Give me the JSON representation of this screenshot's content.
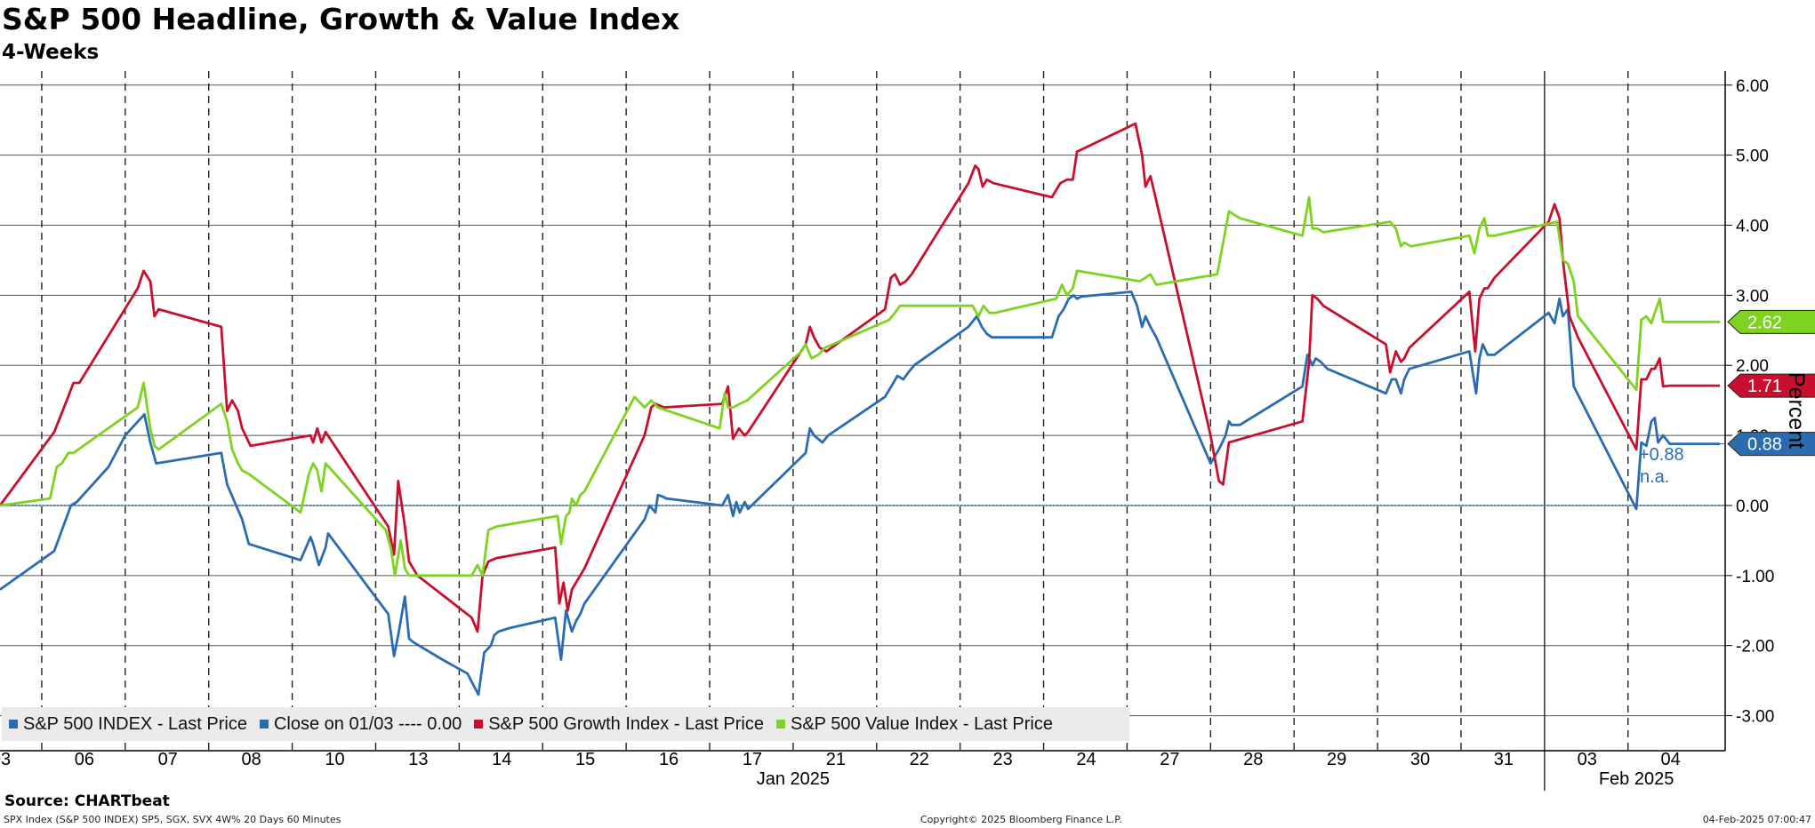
{
  "header": {
    "title": "S&P 500 Headline, Growth & Value Index",
    "subtitle": "4-Weeks"
  },
  "footer": {
    "source": "Source: CHARTbeat",
    "description": "SPX Index (S&P 500 INDEX) SP5, SGX, SVX 4W% 20 Days 60 Minutes",
    "copyright": "Copyright© 2025 Bloomberg Finance L.P.",
    "timestamp": "04-Feb-2025 07:00:47"
  },
  "legend": [
    {
      "label": "S&P 500 INDEX - Last Price",
      "color": "#2b6cb0"
    },
    {
      "label": "Close on 01/03 ---- 0.00",
      "color": "#2b6cb0"
    },
    {
      "label": "S&P 500 Growth Index - Last Price",
      "color": "#c8102e"
    },
    {
      "label": "S&P 500 Value Index - Last Price",
      "color": "#7ed321"
    }
  ],
  "chart_data": {
    "type": "line",
    "title": "S&P 500 Headline, Growth & Value Index",
    "subtitle": "4-Weeks",
    "ylabel": "Percent",
    "ylim": [
      -3.5,
      6.2
    ],
    "yticks": [
      6,
      5,
      4,
      3,
      2,
      1,
      0,
      -1,
      -2,
      -3
    ],
    "ytick_labels": [
      "6.00",
      "5.00",
      "4.00",
      "3.00",
      "2.00",
      "1.00",
      "0.00",
      "-1.00",
      "-2.00",
      "-3.00"
    ],
    "x_range": [
      0,
      20.6
    ],
    "categories": [
      "03",
      "06",
      "07",
      "08",
      "10",
      "13",
      "14",
      "15",
      "16",
      "17",
      "21",
      "22",
      "23",
      "24",
      "27",
      "28",
      "29",
      "30",
      "31",
      "03",
      "04"
    ],
    "month_labels": [
      {
        "label": "Jan 2025",
        "at": 9.5
      },
      {
        "label": "Feb 2025",
        "at": 19.6
      }
    ],
    "baseline": {
      "label": "Close on 01/03",
      "value": 0.0
    },
    "annotations": {
      "headline_value": "+0.88",
      "na_text": "n.a."
    },
    "series": [
      {
        "name": "S&P 500 INDEX - Last Price",
        "color": "#2b6cb0",
        "last": 0.88,
        "last_label": "0.88",
        "x": [
          0,
          0.65,
          0.85,
          0.92,
          1.3,
          1.5,
          1.73,
          1.8,
          1.87,
          2.65,
          2.72,
          2.9,
          2.98,
          3.6,
          3.72,
          3.75,
          3.82,
          3.9,
          3.93,
          4.65,
          4.72,
          4.77,
          4.85,
          4.9,
          4.95,
          5.3,
          5.6,
          5.73,
          5.8,
          5.88,
          5.92,
          5.97,
          6.1,
          6.65,
          6.72,
          6.78,
          6.85,
          6.9,
          6.95,
          7.0,
          7.72,
          7.78,
          7.85,
          7.88,
          7.95,
          7.98,
          8.65,
          8.72,
          8.78,
          8.82,
          8.86,
          8.92,
          8.96,
          9.65,
          9.7,
          9.75,
          9.85,
          9.92,
          10.6,
          10.7,
          10.75,
          10.82,
          10.88,
          10.95,
          11.6,
          11.7,
          11.76,
          11.82,
          11.88,
          12.6,
          12.68,
          12.74,
          12.8,
          12.86,
          12.9,
          12.95,
          13.55,
          13.62,
          13.68,
          13.72,
          13.78,
          13.85,
          14.5,
          14.6,
          14.68,
          14.72,
          14.75,
          14.85,
          15.6,
          15.66,
          15.72,
          15.76,
          15.82,
          15.9,
          16.6,
          16.67,
          16.72,
          16.78,
          16.82,
          16.88,
          17.6,
          17.68,
          17.72,
          17.76,
          17.82,
          17.9,
          18.55,
          18.62,
          18.68,
          18.72,
          18.78,
          18.85,
          19.6,
          19.66,
          19.72,
          19.78,
          19.82,
          19.86,
          19.92,
          20.0,
          20.6
        ],
        "y": [
          -1.2,
          -0.65,
          0.0,
          0.05,
          0.55,
          1.0,
          1.3,
          0.9,
          0.6,
          0.75,
          0.3,
          -0.2,
          -0.55,
          -0.78,
          -0.45,
          -0.55,
          -0.85,
          -0.6,
          -0.4,
          -1.55,
          -2.15,
          -1.85,
          -1.3,
          -1.9,
          -1.95,
          -2.2,
          -2.4,
          -2.7,
          -2.1,
          -2.0,
          -1.85,
          -1.8,
          -1.75,
          -1.6,
          -2.2,
          -1.5,
          -1.8,
          -1.65,
          -1.55,
          -1.4,
          -0.2,
          0.0,
          -0.1,
          0.15,
          0.12,
          0.1,
          0.0,
          0.15,
          -0.15,
          0.05,
          -0.1,
          0.05,
          -0.05,
          0.75,
          1.1,
          1.0,
          0.9,
          1.0,
          1.55,
          1.75,
          1.85,
          1.8,
          1.9,
          2.0,
          2.55,
          2.7,
          2.55,
          2.45,
          2.4,
          2.4,
          2.7,
          2.8,
          2.95,
          3.0,
          2.95,
          2.98,
          3.05,
          2.85,
          2.55,
          2.7,
          2.55,
          2.4,
          0.6,
          0.8,
          1.0,
          1.2,
          1.15,
          1.15,
          1.7,
          2.15,
          2.0,
          2.1,
          2.05,
          1.95,
          1.6,
          1.8,
          1.8,
          1.6,
          1.8,
          1.95,
          2.2,
          1.6,
          2.1,
          2.3,
          2.15,
          2.15,
          2.75,
          2.6,
          2.95,
          2.7,
          2.8,
          1.7,
          -0.05,
          0.9,
          0.85,
          1.2,
          1.25,
          0.9,
          1.0,
          0.88,
          0.88
        ]
      },
      {
        "name": "S&P 500 Growth Index - Last Price",
        "color": "#c8102e",
        "last": 1.71,
        "last_label": "1.71",
        "x": [
          0,
          0.65,
          0.8,
          0.88,
          0.95,
          1.65,
          1.72,
          1.8,
          1.85,
          1.9,
          2.65,
          2.72,
          2.78,
          2.85,
          2.9,
          3.0,
          3.72,
          3.75,
          3.8,
          3.85,
          3.9,
          4.65,
          4.72,
          4.77,
          4.85,
          4.9,
          5.0,
          5.65,
          5.72,
          5.78,
          5.85,
          5.95,
          6.65,
          6.7,
          6.75,
          6.8,
          6.85,
          6.9,
          6.95,
          7.0,
          7.72,
          7.8,
          7.85,
          7.95,
          8.65,
          8.72,
          8.78,
          8.85,
          8.92,
          8.96,
          9.65,
          9.7,
          9.75,
          9.82,
          9.9,
          10.6,
          10.67,
          10.72,
          10.78,
          10.85,
          10.92,
          11.6,
          11.68,
          11.72,
          11.77,
          11.82,
          11.9,
          12.6,
          12.7,
          12.78,
          12.85,
          12.9,
          13.6,
          13.68,
          13.72,
          13.78,
          13.82,
          14.5,
          14.6,
          14.65,
          14.72,
          15.6,
          15.68,
          15.72,
          15.78,
          15.85,
          16.6,
          16.65,
          16.72,
          16.78,
          16.82,
          16.88,
          17.6,
          17.67,
          17.72,
          17.78,
          17.82,
          17.9,
          18.55,
          18.62,
          18.68,
          18.72,
          18.8,
          18.9,
          19.6,
          19.66,
          19.72,
          19.78,
          19.82,
          19.88,
          19.92,
          20.0,
          20.6
        ],
        "y": [
          0.0,
          1.05,
          1.5,
          1.75,
          1.75,
          3.1,
          3.35,
          3.2,
          2.7,
          2.8,
          2.55,
          1.35,
          1.5,
          1.35,
          1.1,
          0.85,
          1.0,
          0.9,
          1.1,
          0.9,
          1.05,
          -0.3,
          -0.7,
          0.35,
          -0.3,
          -0.8,
          -1.0,
          -1.6,
          -1.8,
          -1.0,
          -0.8,
          -0.75,
          -0.6,
          -1.4,
          -1.1,
          -1.5,
          -1.2,
          -1.1,
          -1.0,
          -0.9,
          1.0,
          1.4,
          1.45,
          1.4,
          1.45,
          1.7,
          0.95,
          1.1,
          1.0,
          1.05,
          2.3,
          2.55,
          2.4,
          2.25,
          2.2,
          2.8,
          3.25,
          3.3,
          3.15,
          3.2,
          3.3,
          4.6,
          4.85,
          4.8,
          4.55,
          4.65,
          4.6,
          4.4,
          4.6,
          4.65,
          4.65,
          5.05,
          5.45,
          5.0,
          4.55,
          4.7,
          4.5,
          1.0,
          0.35,
          0.3,
          0.9,
          1.2,
          2.05,
          3.0,
          2.95,
          2.85,
          2.3,
          1.9,
          2.2,
          2.05,
          2.1,
          2.25,
          3.05,
          2.2,
          2.95,
          3.1,
          3.1,
          3.25,
          4.05,
          4.3,
          4.1,
          3.5,
          2.7,
          2.4,
          0.8,
          1.8,
          1.8,
          1.95,
          1.95,
          2.1,
          1.7,
          1.71,
          1.71
        ]
      },
      {
        "name": "S&P 500 Value Index - Last Price",
        "color": "#7ed321",
        "last": 2.62,
        "last_label": "2.62",
        "x": [
          0,
          0.6,
          0.68,
          0.74,
          0.82,
          0.88,
          1.65,
          1.72,
          1.8,
          1.85,
          1.9,
          2.65,
          2.72,
          2.78,
          2.85,
          2.9,
          2.98,
          3.6,
          3.7,
          3.75,
          3.8,
          3.85,
          3.9,
          4.62,
          4.68,
          4.73,
          4.8,
          4.85,
          4.9,
          5.65,
          5.72,
          5.78,
          5.85,
          5.95,
          6.68,
          6.72,
          6.78,
          6.82,
          6.85,
          6.9,
          6.95,
          7.0,
          7.6,
          7.72,
          7.8,
          7.88,
          8.62,
          8.68,
          8.72,
          8.78,
          8.86,
          8.95,
          9.6,
          9.65,
          9.72,
          9.8,
          9.88,
          10.65,
          10.72,
          10.78,
          10.85,
          10.92,
          11.65,
          11.72,
          11.78,
          11.85,
          11.92,
          12.65,
          12.72,
          12.78,
          12.85,
          12.9,
          13.65,
          13.72,
          13.78,
          13.85,
          14.58,
          14.72,
          14.78,
          14.85,
          15.6,
          15.68,
          15.72,
          15.78,
          15.85,
          16.65,
          16.72,
          16.78,
          16.82,
          16.9,
          17.6,
          17.66,
          17.72,
          17.78,
          17.82,
          17.9,
          18.65,
          18.72,
          18.78,
          18.85,
          18.9,
          19.6,
          19.66,
          19.72,
          19.78,
          19.82,
          19.88,
          19.92,
          20.0,
          20.6
        ],
        "y": [
          0.0,
          0.1,
          0.55,
          0.6,
          0.75,
          0.75,
          1.4,
          1.75,
          1.1,
          0.85,
          0.8,
          1.45,
          1.2,
          0.8,
          0.6,
          0.5,
          0.45,
          -0.1,
          0.45,
          0.6,
          0.5,
          0.2,
          0.6,
          -0.35,
          -0.6,
          -1.0,
          -0.5,
          -0.9,
          -1.0,
          -1.0,
          -0.85,
          -1.0,
          -0.35,
          -0.3,
          -0.15,
          -0.55,
          -0.15,
          -0.1,
          0.1,
          0.0,
          0.15,
          0.2,
          1.55,
          1.4,
          1.5,
          1.4,
          1.1,
          1.6,
          1.4,
          1.4,
          1.45,
          1.5,
          2.2,
          2.3,
          2.1,
          2.15,
          2.25,
          2.65,
          2.75,
          2.85,
          2.85,
          2.85,
          2.85,
          2.7,
          2.85,
          2.75,
          2.75,
          2.95,
          3.15,
          3.0,
          3.1,
          3.35,
          3.2,
          3.25,
          3.3,
          3.15,
          3.3,
          4.2,
          4.15,
          4.1,
          3.85,
          4.4,
          3.95,
          3.95,
          3.9,
          4.05,
          3.95,
          3.7,
          3.75,
          3.7,
          3.85,
          3.6,
          3.95,
          4.1,
          3.85,
          3.85,
          4.05,
          3.5,
          3.45,
          3.2,
          2.7,
          1.65,
          2.65,
          2.7,
          2.6,
          2.75,
          2.95,
          2.62,
          2.62,
          2.62
        ]
      }
    ]
  }
}
